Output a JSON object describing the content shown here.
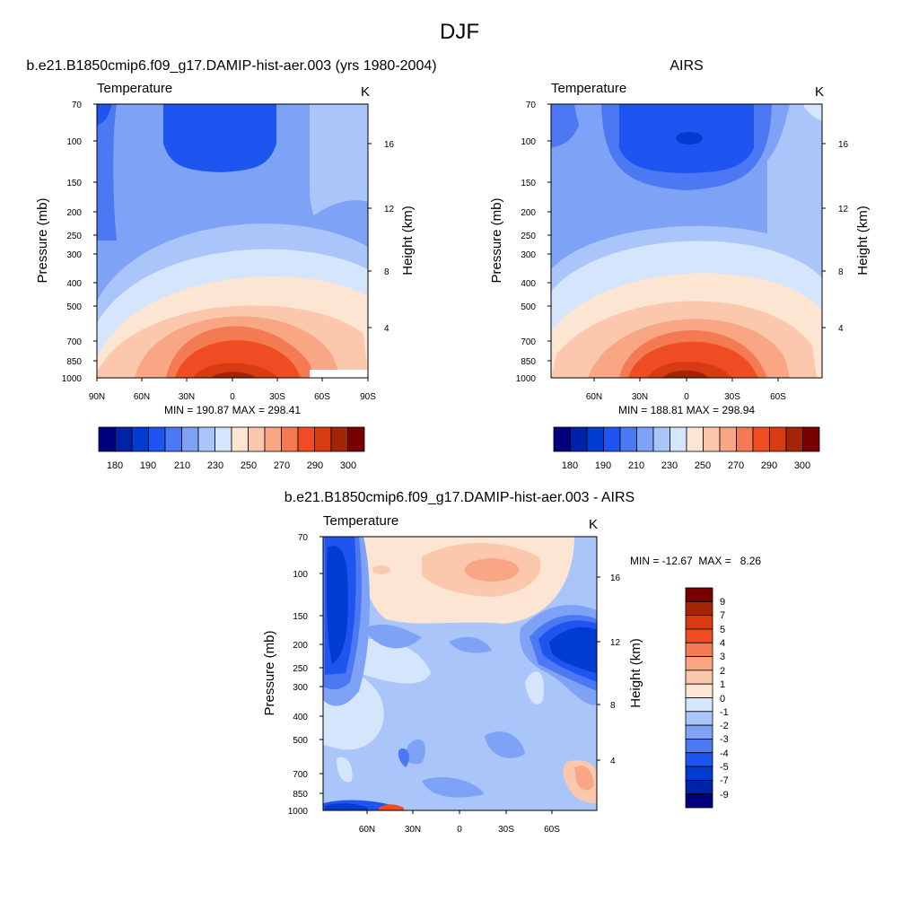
{
  "figure": {
    "title": "DJF"
  },
  "colors": {
    "temperature_scale": [
      "#00007f",
      "#0022a8",
      "#003cd2",
      "#1e55f0",
      "#4c78f4",
      "#7ea3f6",
      "#a9c5fa",
      "#d5e5fb",
      "#fde5d3",
      "#fbc8ad",
      "#f8a683",
      "#f37a52",
      "#f04c23",
      "#d83a12",
      "#a42408",
      "#780000"
    ],
    "diff_scale": [
      "#00007f",
      "#0022a8",
      "#003cd2",
      "#1e55f0",
      "#4c78f4",
      "#7ea3f6",
      "#a9c5fa",
      "#d5e5fb",
      "#fde5d3",
      "#fbc8ad",
      "#f8a683",
      "#f37a52",
      "#f04c23",
      "#d83a12",
      "#a42408",
      "#780000"
    ]
  },
  "chart_data": [
    {
      "type": "heatmap",
      "title": "b.e21.B1850cmip6.f09_g17.DAMIP-hist-aer.003 (yrs 1980-2004)",
      "left_label": "Temperature",
      "right_label": "K",
      "ylabel": "Pressure (mb)",
      "y2label": "Height (km)",
      "x_ticks": [
        "90N",
        "60N",
        "30N",
        "0",
        "30S",
        "60S",
        "90S"
      ],
      "y_ticks": [
        "70",
        "100",
        "150",
        "200",
        "250",
        "300",
        "400",
        "500",
        "700",
        "850",
        "1000"
      ],
      "y2_ticks": [
        "16",
        "12",
        "8",
        "4"
      ],
      "stats": "MIN = 190.87  MAX = 298.41",
      "colorbar_labels": [
        "180",
        "190",
        "210",
        "230",
        "250",
        "270",
        "290",
        "300"
      ],
      "min": 190.87,
      "max": 298.41
    },
    {
      "type": "heatmap",
      "title": "AIRS",
      "left_label": "Temperature",
      "right_label": "K",
      "ylabel": "Pressure (mb)",
      "y2label": "Height (km)",
      "x_ticks": [
        "60N",
        "30N",
        "0",
        "30S",
        "60S"
      ],
      "y_ticks": [
        "70",
        "100",
        "150",
        "200",
        "250",
        "300",
        "400",
        "500",
        "700",
        "850",
        "1000"
      ],
      "y2_ticks": [
        "16",
        "12",
        "8",
        "4"
      ],
      "stats": "MIN = 188.81  MAX = 298.94",
      "colorbar_labels": [
        "180",
        "190",
        "210",
        "230",
        "250",
        "270",
        "290",
        "300"
      ],
      "min": 188.81,
      "max": 298.94
    },
    {
      "type": "heatmap",
      "title": "b.e21.B1850cmip6.f09_g17.DAMIP-hist-aer.003 - AIRS",
      "left_label": "Temperature",
      "right_label": "K",
      "ylabel": "Pressure (mb)",
      "y2label": "Height (km)",
      "x_ticks": [
        "60N",
        "30N",
        "0",
        "30S",
        "60S"
      ],
      "y_ticks": [
        "70",
        "100",
        "150",
        "200",
        "250",
        "300",
        "400",
        "500",
        "700",
        "850",
        "1000"
      ],
      "y2_ticks": [
        "16",
        "12",
        "8",
        "4"
      ],
      "stats": "MIN = -12.67  MAX =   8.26",
      "colorbar_labels": [
        "9",
        "7",
        "5",
        "4",
        "3",
        "2",
        "1",
        "0",
        "-1",
        "-2",
        "-3",
        "-4",
        "-5",
        "-7",
        "-9"
      ],
      "min": -12.67,
      "max": 8.26
    }
  ]
}
